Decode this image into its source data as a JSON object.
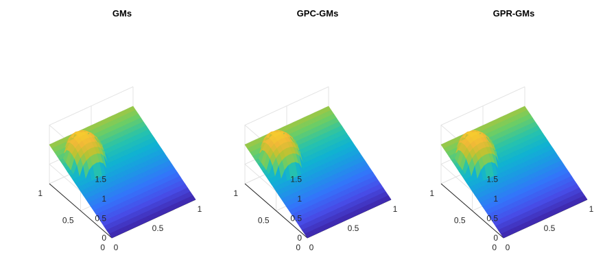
{
  "chart_data": [
    {
      "type": "surface",
      "title": "GMs",
      "xlabel": "",
      "ylabel": "",
      "zlabel": "",
      "xlim": [
        0,
        1
      ],
      "ylim": [
        0,
        1
      ],
      "zlim": [
        0,
        1.5
      ],
      "x_ticks": [
        "0",
        "0.5",
        "1"
      ],
      "y_ticks": [
        "0",
        "0.5",
        "1"
      ],
      "z_ticks": [
        "0",
        "0.5",
        "1",
        "1.5"
      ],
      "grid": true,
      "colormap": "parula",
      "surface": {
        "plane_at_origin": 0.0,
        "plane_at_x1": 0.0,
        "plane_at_y1": 1.0,
        "bump_center": [
          0.25,
          0.75
        ],
        "bump_height": 0.5,
        "bump_radius": 0.2
      }
    },
    {
      "type": "surface",
      "title": "GPC-GMs",
      "xlabel": "",
      "ylabel": "",
      "zlabel": "",
      "xlim": [
        0,
        1
      ],
      "ylim": [
        0,
        1
      ],
      "zlim": [
        0,
        1.5
      ],
      "x_ticks": [
        "0",
        "0.5",
        "1"
      ],
      "y_ticks": [
        "0",
        "0.5",
        "1"
      ],
      "z_ticks": [
        "0",
        "0.5",
        "1",
        "1.5"
      ],
      "grid": true,
      "colormap": "parula",
      "surface": {
        "plane_at_origin": 0.0,
        "plane_at_x1": 0.0,
        "plane_at_y1": 1.0,
        "bump_center": [
          0.25,
          0.75
        ],
        "bump_height": 0.5,
        "bump_radius": 0.2
      }
    },
    {
      "type": "surface",
      "title": "GPR-GMs",
      "xlabel": "",
      "ylabel": "",
      "zlabel": "",
      "xlim": [
        0,
        1
      ],
      "ylim": [
        0,
        1
      ],
      "zlim": [
        0,
        1.5
      ],
      "x_ticks": [
        "0",
        "0.5",
        "1"
      ],
      "y_ticks": [
        "0",
        "0.5",
        "1"
      ],
      "z_ticks": [
        "0",
        "0.5",
        "1",
        "1.5"
      ],
      "grid": true,
      "colormap": "parula",
      "surface": {
        "plane_at_origin": 0.0,
        "plane_at_x1": 0.0,
        "plane_at_y1": 1.0,
        "bump_center": [
          0.25,
          0.75
        ],
        "bump_height": 0.5,
        "bump_radius": 0.2
      }
    }
  ]
}
